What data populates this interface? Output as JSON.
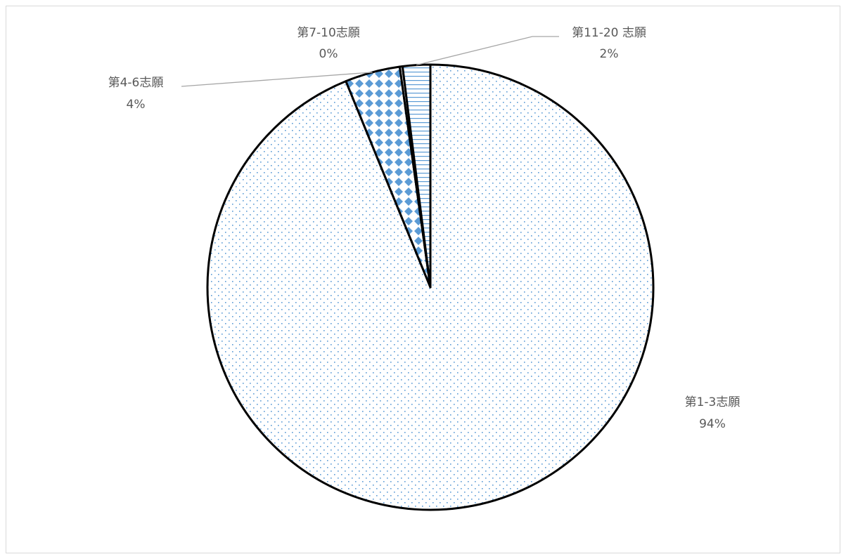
{
  "chart_data": {
    "type": "pie",
    "slices": [
      {
        "label": "第1-3志願",
        "value": 94,
        "value_label": "94%",
        "pattern": "dots"
      },
      {
        "label": "第4-6志願",
        "value": 4,
        "value_label": "4%",
        "pattern": "diamonds"
      },
      {
        "label": "第7-10志願",
        "value": 0.2,
        "value_label": "0%",
        "pattern": "none"
      },
      {
        "label": "第11-20 志願",
        "value": 2,
        "value_label": "2%",
        "pattern": "horizontal-lines"
      }
    ],
    "colors": {
      "pattern": "#5b9bd5",
      "outline": "#000000",
      "leader": "#a6a6a6",
      "text": "#595959"
    },
    "legend": "none",
    "data_labels": "outside with leader lines"
  }
}
